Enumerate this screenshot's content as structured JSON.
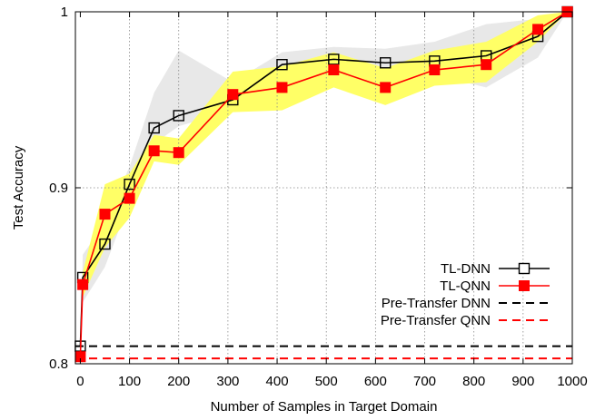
{
  "chart_data": {
    "type": "line",
    "xlabel": "Number of Samples in Target Domain",
    "ylabel": "Test Accuracy",
    "xlim": [
      -10,
      1000
    ],
    "ylim": [
      0.8,
      1.0
    ],
    "x_ticks": [
      0,
      100,
      200,
      300,
      400,
      500,
      600,
      700,
      800,
      900,
      1000
    ],
    "y_ticks": [
      0.8,
      0.9,
      1.0
    ],
    "x_tick_labels": [
      "0",
      "100",
      "200",
      "300",
      "400",
      "500",
      "600",
      "700",
      "800",
      "900",
      "1000"
    ],
    "y_tick_labels": [
      "0.8",
      "0.9",
      "1"
    ],
    "grid": "dotted",
    "legend_position": "bottom-right",
    "series": [
      {
        "name": "TL-DNN",
        "color": "#000000",
        "marker": "open-square",
        "x": [
          0,
          5,
          50,
          100,
          150,
          200,
          310,
          410,
          515,
          620,
          720,
          825,
          930,
          990
        ],
        "y": [
          0.81,
          0.849,
          0.868,
          0.902,
          0.934,
          0.941,
          0.95,
          0.97,
          0.973,
          0.971,
          0.972,
          0.975,
          0.986,
          1.0
        ],
        "band_color": "#e8e8e8",
        "band_low": [
          0.81,
          0.835,
          0.855,
          0.892,
          0.925,
          0.935,
          0.944,
          0.963,
          0.968,
          0.966,
          0.964,
          0.957,
          0.974,
          1.0
        ],
        "band_high": [
          0.81,
          0.862,
          0.88,
          0.912,
          0.954,
          0.978,
          0.96,
          0.977,
          0.98,
          0.979,
          0.983,
          0.993,
          0.996,
          1.0
        ]
      },
      {
        "name": "TL-QNN",
        "color": "#ff0000",
        "marker": "filled-square",
        "x": [
          0,
          5,
          50,
          100,
          150,
          200,
          310,
          410,
          515,
          620,
          720,
          825,
          930,
          990
        ],
        "y": [
          0.804,
          0.845,
          0.885,
          0.894,
          0.921,
          0.92,
          0.953,
          0.957,
          0.967,
          0.957,
          0.967,
          0.97,
          0.99,
          1.0
        ],
        "band_color": "#ffff66",
        "band_low": [
          0.804,
          0.838,
          0.866,
          0.883,
          0.915,
          0.913,
          0.943,
          0.944,
          0.957,
          0.947,
          0.958,
          0.96,
          0.983,
          1.0
        ],
        "band_high": [
          0.804,
          0.852,
          0.902,
          0.908,
          0.93,
          0.928,
          0.966,
          0.969,
          0.977,
          0.968,
          0.978,
          0.983,
          0.998,
          1.0
        ]
      }
    ],
    "reference_lines": [
      {
        "name": "Pre-Transfer DNN",
        "y": 0.81,
        "color": "#000000",
        "style": "dashed"
      },
      {
        "name": "Pre-Transfer QNN",
        "y": 0.803,
        "color": "#ff0000",
        "style": "dashed"
      }
    ]
  }
}
